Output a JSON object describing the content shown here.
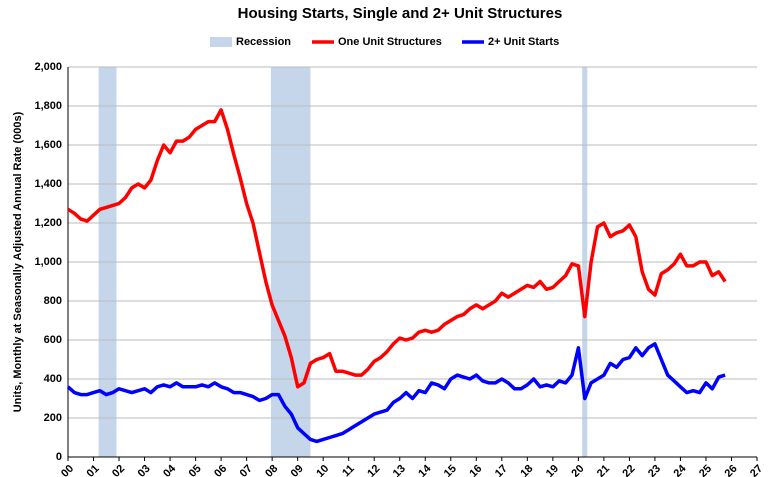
{
  "chart_data": {
    "type": "line",
    "title": "Housing Starts, Single and 2+ Unit Structures",
    "y_label": "Units, Monthly at Seasonally Adjusted Annual Rate (000s)",
    "recession_label": "Recession",
    "recession_color": "#c5d5ea",
    "recessions": [
      {
        "start": 2001.2,
        "end": 2001.9
      },
      {
        "start": 2007.95,
        "end": 2009.5
      },
      {
        "start": 2020.15,
        "end": 2020.35
      }
    ],
    "x": [
      2000,
      2000.25,
      2000.5,
      2000.75,
      2001,
      2001.25,
      2001.5,
      2001.75,
      2002,
      2002.25,
      2002.5,
      2002.75,
      2003,
      2003.25,
      2003.5,
      2003.75,
      2004,
      2004.25,
      2004.5,
      2004.75,
      2005,
      2005.25,
      2005.5,
      2005.75,
      2006,
      2006.25,
      2006.5,
      2006.75,
      2007,
      2007.25,
      2007.5,
      2007.75,
      2008,
      2008.25,
      2008.5,
      2008.75,
      2009,
      2009.25,
      2009.5,
      2009.75,
      2010,
      2010.25,
      2010.5,
      2010.75,
      2011,
      2011.25,
      2011.5,
      2011.75,
      2012,
      2012.25,
      2012.5,
      2012.75,
      2013,
      2013.25,
      2013.5,
      2013.75,
      2014,
      2014.25,
      2014.5,
      2014.75,
      2015,
      2015.25,
      2015.5,
      2015.75,
      2016,
      2016.25,
      2016.5,
      2016.75,
      2017,
      2017.25,
      2017.5,
      2017.75,
      2018,
      2018.25,
      2018.5,
      2018.75,
      2019,
      2019.25,
      2019.5,
      2019.75,
      2020,
      2020.25,
      2020.5,
      2020.75,
      2021,
      2021.25,
      2021.5,
      2021.75,
      2022,
      2022.25,
      2022.5,
      2022.75,
      2023,
      2023.25,
      2023.5,
      2023.75,
      2024,
      2024.25,
      2024.5,
      2024.75,
      2025,
      2025.25,
      2025.5,
      2025.75
    ],
    "series": [
      {
        "name": "One Unit Structures",
        "color": "#ff0000",
        "values": [
          1270,
          1250,
          1220,
          1210,
          1240,
          1270,
          1280,
          1290,
          1300,
          1330,
          1380,
          1400,
          1380,
          1420,
          1520,
          1600,
          1560,
          1620,
          1620,
          1640,
          1680,
          1700,
          1720,
          1720,
          1780,
          1680,
          1550,
          1430,
          1300,
          1200,
          1050,
          900,
          780,
          700,
          620,
          510,
          360,
          380,
          480,
          500,
          510,
          530,
          440,
          440,
          430,
          420,
          420,
          450,
          490,
          510,
          540,
          580,
          610,
          600,
          610,
          640,
          650,
          640,
          650,
          680,
          700,
          720,
          730,
          760,
          780,
          760,
          780,
          800,
          840,
          820,
          840,
          860,
          880,
          870,
          900,
          860,
          870,
          900,
          930,
          990,
          980,
          720,
          1000,
          1180,
          1200,
          1130,
          1150,
          1160,
          1190,
          1130,
          950,
          860,
          830,
          940,
          960,
          990,
          1040,
          980,
          980,
          1000,
          1000,
          930,
          950,
          900
        ]
      },
      {
        "name": "2+ Unit Starts",
        "color": "#0000ff",
        "values": [
          360,
          330,
          320,
          320,
          330,
          340,
          320,
          330,
          350,
          340,
          330,
          340,
          350,
          330,
          360,
          370,
          360,
          380,
          360,
          360,
          360,
          370,
          360,
          380,
          360,
          350,
          330,
          330,
          320,
          310,
          290,
          300,
          320,
          320,
          260,
          220,
          150,
          120,
          90,
          80,
          90,
          100,
          110,
          120,
          140,
          160,
          180,
          200,
          220,
          230,
          240,
          280,
          300,
          330,
          300,
          340,
          330,
          380,
          370,
          350,
          400,
          420,
          410,
          400,
          420,
          390,
          380,
          380,
          400,
          380,
          350,
          350,
          370,
          400,
          360,
          370,
          360,
          390,
          380,
          420,
          560,
          300,
          380,
          400,
          420,
          480,
          460,
          500,
          510,
          560,
          520,
          560,
          580,
          500,
          420,
          390,
          360,
          330,
          340,
          330,
          380,
          350,
          410,
          420
        ]
      }
    ],
    "xlim": [
      2000,
      2027
    ],
    "xticks": [
      {
        "value": 2000,
        "label": "00"
      },
      {
        "value": 2001,
        "label": "01"
      },
      {
        "value": 2002,
        "label": "02"
      },
      {
        "value": 2003,
        "label": "03"
      },
      {
        "value": 2004,
        "label": "04"
      },
      {
        "value": 2005,
        "label": "05"
      },
      {
        "value": 2006,
        "label": "06"
      },
      {
        "value": 2007,
        "label": "07"
      },
      {
        "value": 2008,
        "label": "08"
      },
      {
        "value": 2009,
        "label": "09"
      },
      {
        "value": 2010,
        "label": "10"
      },
      {
        "value": 2011,
        "label": "11"
      },
      {
        "value": 2012,
        "label": "12"
      },
      {
        "value": 2013,
        "label": "13"
      },
      {
        "value": 2014,
        "label": "14"
      },
      {
        "value": 2015,
        "label": "15"
      },
      {
        "value": 2016,
        "label": "16"
      },
      {
        "value": 2017,
        "label": "17"
      },
      {
        "value": 2018,
        "label": "18"
      },
      {
        "value": 2019,
        "label": "19"
      },
      {
        "value": 2020,
        "label": "20"
      },
      {
        "value": 2021,
        "label": "21"
      },
      {
        "value": 2022,
        "label": "22"
      },
      {
        "value": 2023,
        "label": "23"
      },
      {
        "value": 2024,
        "label": "24"
      },
      {
        "value": 2025,
        "label": "25"
      },
      {
        "value": 2026,
        "label": "26"
      },
      {
        "value": 2027,
        "label": "27"
      }
    ],
    "ylim": [
      0,
      2000
    ],
    "yticks": [
      0,
      200,
      400,
      600,
      800,
      {
        "value": 1000,
        "label": "1,000"
      },
      {
        "value": 1200,
        "label": "1,200"
      },
      {
        "value": 1400,
        "label": "1,400"
      },
      {
        "value": 1600,
        "label": "1,600"
      },
      {
        "value": 1800,
        "label": "1,800"
      },
      {
        "value": 2000,
        "label": "2,000"
      }
    ],
    "grid": true
  }
}
